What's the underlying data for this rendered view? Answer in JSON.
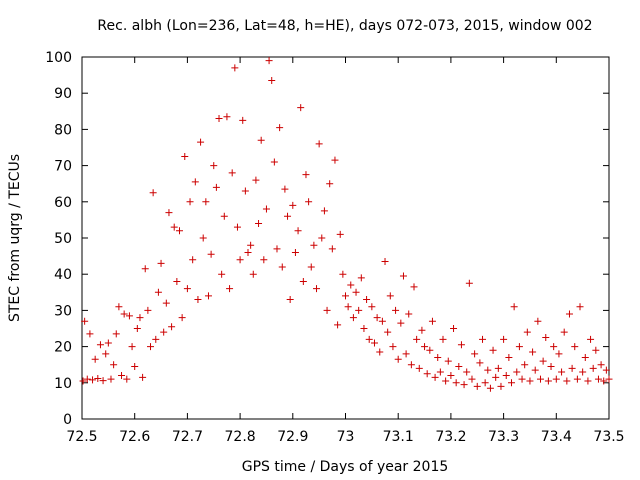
{
  "chart_data": {
    "type": "scatter",
    "title": "Rec. albh (Lon=236, Lat=48, h=HE), days 072-073, 2015, window 002",
    "xlabel": "GPS time / Days of year 2015",
    "ylabel": "STEC from uqrg / TECUs",
    "xlim": [
      72.5,
      73.5
    ],
    "ylim": [
      0,
      100
    ],
    "xticks": [
      "72.5",
      "72.6",
      "72.7",
      "72.8",
      "72.9",
      "73",
      "73.1",
      "73.2",
      "73.3",
      "73.4",
      "73.5"
    ],
    "yticks": [
      "0",
      "10",
      "20",
      "30",
      "40",
      "50",
      "60",
      "70",
      "80",
      "90",
      "100"
    ],
    "grid": false,
    "legend": "none",
    "marker": "plus",
    "color": "#cc0000",
    "series": [
      {
        "points": [
          [
            72.502,
            10.5
          ],
          [
            72.505,
            27.0
          ],
          [
            72.51,
            11.0
          ],
          [
            72.515,
            23.5
          ],
          [
            72.52,
            10.8
          ],
          [
            72.525,
            16.5
          ],
          [
            72.53,
            11.2
          ],
          [
            72.535,
            20.5
          ],
          [
            72.54,
            10.6
          ],
          [
            72.545,
            18.0
          ],
          [
            72.55,
            21.0
          ],
          [
            72.555,
            11.0
          ],
          [
            72.56,
            15.0
          ],
          [
            72.565,
            23.5
          ],
          [
            72.57,
            31.0
          ],
          [
            72.575,
            12.0
          ],
          [
            72.58,
            29.0
          ],
          [
            72.585,
            11.0
          ],
          [
            72.59,
            28.5
          ],
          [
            72.595,
            20.0
          ],
          [
            72.6,
            14.5
          ],
          [
            72.605,
            25.0
          ],
          [
            72.61,
            28.0
          ],
          [
            72.615,
            11.5
          ],
          [
            72.62,
            41.5
          ],
          [
            72.625,
            30.0
          ],
          [
            72.63,
            20.0
          ],
          [
            72.635,
            62.5
          ],
          [
            72.64,
            22.0
          ],
          [
            72.645,
            35.0
          ],
          [
            72.65,
            43.0
          ],
          [
            72.655,
            24.0
          ],
          [
            72.66,
            32.0
          ],
          [
            72.665,
            57.0
          ],
          [
            72.67,
            25.5
          ],
          [
            72.675,
            53.0
          ],
          [
            72.68,
            38.0
          ],
          [
            72.685,
            52.0
          ],
          [
            72.69,
            28.0
          ],
          [
            72.695,
            72.5
          ],
          [
            72.7,
            36.0
          ],
          [
            72.705,
            60.0
          ],
          [
            72.71,
            44.0
          ],
          [
            72.715,
            65.5
          ],
          [
            72.72,
            33.0
          ],
          [
            72.725,
            76.5
          ],
          [
            72.73,
            50.0
          ],
          [
            72.735,
            60.0
          ],
          [
            72.74,
            34.0
          ],
          [
            72.745,
            45.5
          ],
          [
            72.75,
            70.0
          ],
          [
            72.755,
            64.0
          ],
          [
            72.76,
            83.0
          ],
          [
            72.765,
            40.0
          ],
          [
            72.77,
            56.0
          ],
          [
            72.775,
            83.5
          ],
          [
            72.78,
            36.0
          ],
          [
            72.785,
            68.0
          ],
          [
            72.79,
            97.0
          ],
          [
            72.795,
            53.0
          ],
          [
            72.8,
            44.0
          ],
          [
            72.805,
            82.5
          ],
          [
            72.81,
            63.0
          ],
          [
            72.815,
            46.0
          ],
          [
            72.82,
            48.0
          ],
          [
            72.825,
            40.0
          ],
          [
            72.83,
            66.0
          ],
          [
            72.835,
            54.0
          ],
          [
            72.84,
            77.0
          ],
          [
            72.845,
            44.0
          ],
          [
            72.85,
            58.0
          ],
          [
            72.855,
            99.0
          ],
          [
            72.86,
            93.5
          ],
          [
            72.865,
            71.0
          ],
          [
            72.87,
            47.0
          ],
          [
            72.875,
            80.5
          ],
          [
            72.88,
            42.0
          ],
          [
            72.885,
            63.5
          ],
          [
            72.89,
            56.0
          ],
          [
            72.895,
            33.0
          ],
          [
            72.9,
            59.0
          ],
          [
            72.905,
            46.0
          ],
          [
            72.91,
            52.0
          ],
          [
            72.915,
            86.0
          ],
          [
            72.92,
            38.0
          ],
          [
            72.925,
            67.5
          ],
          [
            72.93,
            60.0
          ],
          [
            72.935,
            42.0
          ],
          [
            72.94,
            48.0
          ],
          [
            72.945,
            36.0
          ],
          [
            72.95,
            76.0
          ],
          [
            72.955,
            50.0
          ],
          [
            72.96,
            57.5
          ],
          [
            72.965,
            30.0
          ],
          [
            72.97,
            65.0
          ],
          [
            72.975,
            47.0
          ],
          [
            72.98,
            71.5
          ],
          [
            72.985,
            26.0
          ],
          [
            72.99,
            51.0
          ],
          [
            72.995,
            40.0
          ],
          [
            73.0,
            34.0
          ],
          [
            73.005,
            31.0
          ],
          [
            73.01,
            37.0
          ],
          [
            73.015,
            28.0
          ],
          [
            73.02,
            35.0
          ],
          [
            73.025,
            30.0
          ],
          [
            73.03,
            39.0
          ],
          [
            73.035,
            25.0
          ],
          [
            73.04,
            33.0
          ],
          [
            73.045,
            22.0
          ],
          [
            73.05,
            31.0
          ],
          [
            73.055,
            21.0
          ],
          [
            73.06,
            28.0
          ],
          [
            73.065,
            18.5
          ],
          [
            73.07,
            27.0
          ],
          [
            73.075,
            43.5
          ],
          [
            73.08,
            24.0
          ],
          [
            73.085,
            34.0
          ],
          [
            73.09,
            20.0
          ],
          [
            73.095,
            30.0
          ],
          [
            73.1,
            16.5
          ],
          [
            73.105,
            26.5
          ],
          [
            73.11,
            39.5
          ],
          [
            73.115,
            18.0
          ],
          [
            73.12,
            29.0
          ],
          [
            73.125,
            15.0
          ],
          [
            73.13,
            36.5
          ],
          [
            73.135,
            22.0
          ],
          [
            73.14,
            14.0
          ],
          [
            73.145,
            24.5
          ],
          [
            73.15,
            20.0
          ],
          [
            73.155,
            12.5
          ],
          [
            73.16,
            19.0
          ],
          [
            73.165,
            27.0
          ],
          [
            73.17,
            11.5
          ],
          [
            73.175,
            17.0
          ],
          [
            73.18,
            13.0
          ],
          [
            73.185,
            22.0
          ],
          [
            73.19,
            10.5
          ],
          [
            73.195,
            16.0
          ],
          [
            73.2,
            12.0
          ],
          [
            73.205,
            25.0
          ],
          [
            73.21,
            10.0
          ],
          [
            73.215,
            14.5
          ],
          [
            73.22,
            20.5
          ],
          [
            73.225,
            9.5
          ],
          [
            73.23,
            13.0
          ],
          [
            73.235,
            37.5
          ],
          [
            73.24,
            11.0
          ],
          [
            73.245,
            18.0
          ],
          [
            73.25,
            9.0
          ],
          [
            73.255,
            15.5
          ],
          [
            73.26,
            22.0
          ],
          [
            73.265,
            10.0
          ],
          [
            73.27,
            13.5
          ],
          [
            73.275,
            8.5
          ],
          [
            73.28,
            19.0
          ],
          [
            73.285,
            11.5
          ],
          [
            73.29,
            14.0
          ],
          [
            73.295,
            9.0
          ],
          [
            73.3,
            22.0
          ],
          [
            73.305,
            12.0
          ],
          [
            73.31,
            17.0
          ],
          [
            73.315,
            10.0
          ],
          [
            73.32,
            31.0
          ],
          [
            73.325,
            13.0
          ],
          [
            73.33,
            20.0
          ],
          [
            73.335,
            11.0
          ],
          [
            73.34,
            15.0
          ],
          [
            73.345,
            24.0
          ],
          [
            73.35,
            10.5
          ],
          [
            73.355,
            18.5
          ],
          [
            73.36,
            13.5
          ],
          [
            73.365,
            27.0
          ],
          [
            73.37,
            11.0
          ],
          [
            73.375,
            16.0
          ],
          [
            73.38,
            22.5
          ],
          [
            73.385,
            10.5
          ],
          [
            73.39,
            14.5
          ],
          [
            73.395,
            20.0
          ],
          [
            73.4,
            11.0
          ],
          [
            73.405,
            18.0
          ],
          [
            73.41,
            13.0
          ],
          [
            73.415,
            24.0
          ],
          [
            73.42,
            10.5
          ],
          [
            73.425,
            29.0
          ],
          [
            73.43,
            14.0
          ],
          [
            73.435,
            20.0
          ],
          [
            73.44,
            11.0
          ],
          [
            73.445,
            31.0
          ],
          [
            73.45,
            13.0
          ],
          [
            73.455,
            17.0
          ],
          [
            73.46,
            10.5
          ],
          [
            73.465,
            22.0
          ],
          [
            73.47,
            14.0
          ],
          [
            73.475,
            19.0
          ],
          [
            73.48,
            11.0
          ],
          [
            73.485,
            15.0
          ],
          [
            73.49,
            10.5
          ],
          [
            73.495,
            13.5
          ],
          [
            73.5,
            11.0
          ]
        ]
      }
    ]
  }
}
